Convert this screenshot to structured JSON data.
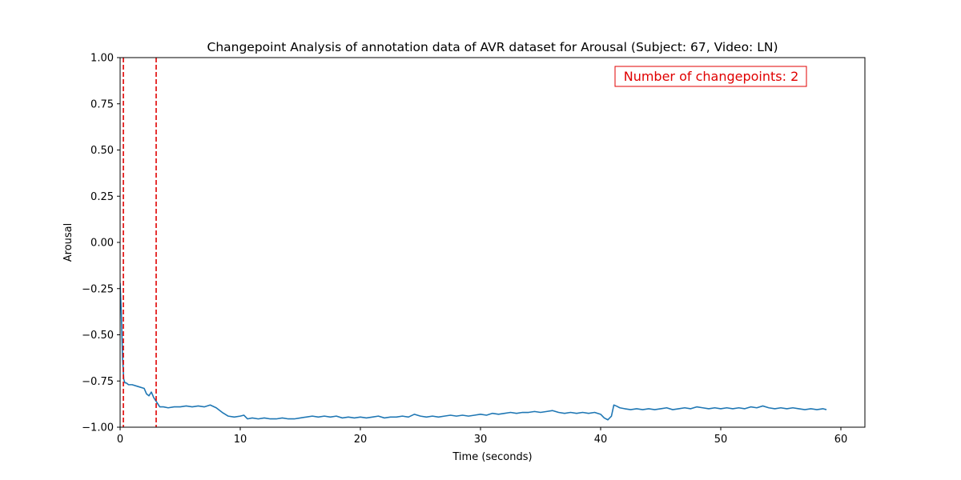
{
  "chart_data": {
    "type": "line",
    "title": "Changepoint Analysis of annotation data of AVR dataset for Arousal (Subject: 67, Video: LN)",
    "xlabel": "Time (seconds)",
    "ylabel": "Arousal",
    "xlim": [
      0,
      62
    ],
    "ylim": [
      -1.0,
      1.0
    ],
    "xticks": [
      0,
      10,
      20,
      30,
      40,
      50,
      60
    ],
    "yticks": [
      -1.0,
      -0.75,
      -0.5,
      -0.25,
      0.0,
      0.25,
      0.5,
      0.75,
      1.0
    ],
    "xtick_labels": [
      "0",
      "10",
      "20",
      "30",
      "40",
      "50",
      "60"
    ],
    "ytick_labels": [
      "−1.00",
      "−0.75",
      "−0.50",
      "−0.25",
      "0.00",
      "0.25",
      "0.50",
      "0.75",
      "1.00"
    ],
    "grid": false,
    "series": [
      {
        "color": "#1f77b4",
        "x": [
          0.0,
          0.1,
          0.2,
          0.3,
          0.4,
          0.5,
          0.7,
          1.0,
          1.5,
          2.0,
          2.2,
          2.4,
          2.6,
          2.8,
          3.0,
          3.3,
          3.6,
          4.0,
          4.5,
          5.0,
          5.5,
          6.0,
          6.5,
          7.0,
          7.5,
          8.0,
          8.5,
          9.0,
          9.5,
          10.0,
          10.3,
          10.6,
          11.0,
          11.5,
          12.0,
          12.5,
          13.0,
          13.5,
          14.0,
          14.5,
          15.0,
          15.5,
          16.0,
          16.5,
          17.0,
          17.5,
          18.0,
          18.5,
          19.0,
          19.5,
          20.0,
          20.5,
          21.0,
          21.5,
          22.0,
          22.5,
          23.0,
          23.5,
          24.0,
          24.5,
          25.0,
          25.5,
          26.0,
          26.5,
          27.0,
          27.5,
          28.0,
          28.5,
          29.0,
          29.5,
          30.0,
          30.5,
          31.0,
          31.5,
          32.0,
          32.5,
          33.0,
          33.5,
          34.0,
          34.5,
          35.0,
          35.5,
          36.0,
          36.5,
          37.0,
          37.5,
          38.0,
          38.5,
          39.0,
          39.5,
          40.0,
          40.3,
          40.6,
          40.9,
          41.1,
          41.3,
          41.6,
          42.0,
          42.5,
          43.0,
          43.5,
          44.0,
          44.5,
          45.0,
          45.5,
          46.0,
          46.5,
          47.0,
          47.5,
          48.0,
          48.5,
          49.0,
          49.5,
          50.0,
          50.5,
          51.0,
          51.5,
          52.0,
          52.5,
          53.0,
          53.5,
          54.0,
          54.5,
          55.0,
          55.5,
          56.0,
          56.5,
          57.0,
          57.5,
          58.0,
          58.5,
          58.8
        ],
        "y": [
          -0.22,
          -0.38,
          -0.62,
          -0.74,
          -0.76,
          -0.76,
          -0.77,
          -0.77,
          -0.78,
          -0.79,
          -0.82,
          -0.83,
          -0.81,
          -0.84,
          -0.86,
          -0.89,
          -0.89,
          -0.895,
          -0.89,
          -0.89,
          -0.885,
          -0.89,
          -0.885,
          -0.89,
          -0.88,
          -0.895,
          -0.92,
          -0.94,
          -0.945,
          -0.94,
          -0.935,
          -0.955,
          -0.95,
          -0.955,
          -0.95,
          -0.955,
          -0.955,
          -0.95,
          -0.955,
          -0.955,
          -0.95,
          -0.945,
          -0.94,
          -0.945,
          -0.94,
          -0.945,
          -0.94,
          -0.95,
          -0.945,
          -0.95,
          -0.945,
          -0.95,
          -0.945,
          -0.94,
          -0.95,
          -0.945,
          -0.945,
          -0.94,
          -0.945,
          -0.93,
          -0.94,
          -0.945,
          -0.94,
          -0.945,
          -0.94,
          -0.935,
          -0.94,
          -0.935,
          -0.94,
          -0.935,
          -0.93,
          -0.935,
          -0.925,
          -0.93,
          -0.925,
          -0.92,
          -0.925,
          -0.92,
          -0.92,
          -0.915,
          -0.92,
          -0.915,
          -0.91,
          -0.92,
          -0.925,
          -0.92,
          -0.925,
          -0.92,
          -0.925,
          -0.92,
          -0.93,
          -0.95,
          -0.96,
          -0.94,
          -0.88,
          -0.885,
          -0.895,
          -0.9,
          -0.905,
          -0.9,
          -0.905,
          -0.9,
          -0.905,
          -0.9,
          -0.895,
          -0.905,
          -0.9,
          -0.895,
          -0.9,
          -0.89,
          -0.895,
          -0.9,
          -0.895,
          -0.9,
          -0.895,
          -0.9,
          -0.895,
          -0.9,
          -0.89,
          -0.895,
          -0.885,
          -0.895,
          -0.9,
          -0.895,
          -0.9,
          -0.895,
          -0.9,
          -0.905,
          -0.9,
          -0.905,
          -0.9,
          -0.905
        ]
      }
    ],
    "changepoints": [
      0.27,
      3.0
    ],
    "changepoint_color": "#e00000",
    "annotation": "Number of changepoints: 2",
    "annotation_color": "#e00000",
    "annotation_placement": "top-right"
  }
}
